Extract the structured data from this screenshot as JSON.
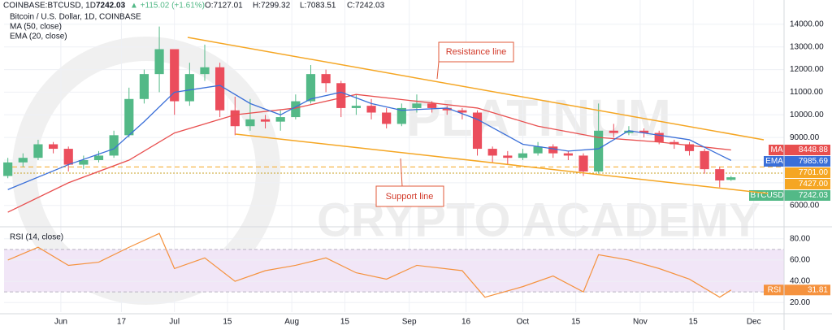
{
  "header": {
    "symbol": "COINBASE:BTCUSD, 1D",
    "price": "7242.03",
    "change": "▲ +115.02 (+1.61%)",
    "open": "O:7127.01",
    "high": "H:7299.32",
    "low": "L:7083.51",
    "close": "C:7242.03"
  },
  "watermark": [
    "PLATINUM",
    "CRYPTO ACADEMY"
  ],
  "annotations": {
    "resistance": "Resistance line",
    "support": "Support line"
  },
  "chart_data": [
    {
      "type": "candlestick",
      "title": "Bitcoin / U.S. Dollar, 1D, COINBASE",
      "xlim": [
        -15,
        191
      ],
      "xticks": [
        {
          "value": 0,
          "label": "Jun"
        },
        {
          "value": 16,
          "label": "17"
        },
        {
          "value": 30,
          "label": "Jul"
        },
        {
          "value": 44,
          "label": "15"
        },
        {
          "value": 61,
          "label": "Aug"
        },
        {
          "value": 75,
          "label": "15"
        },
        {
          "value": 92,
          "label": "Sep"
        },
        {
          "value": 107,
          "label": "16"
        },
        {
          "value": 122,
          "label": "Oct"
        },
        {
          "value": 136,
          "label": "15"
        },
        {
          "value": 153,
          "label": "Nov"
        },
        {
          "value": 167,
          "label": "15"
        },
        {
          "value": 183,
          "label": "Dec"
        }
      ],
      "ylim": [
        5200,
        15000
      ],
      "yticks": [
        {
          "value": 6000,
          "label": "6000.00"
        },
        {
          "value": 7000,
          "label": "7000.00"
        },
        {
          "value": 8000,
          "label": "8000.00"
        },
        {
          "value": 9000,
          "label": "9000.00"
        },
        {
          "value": 10000,
          "label": "10000.00"
        },
        {
          "value": 11000,
          "label": "11000.00"
        },
        {
          "value": 12000,
          "label": "12000.00"
        },
        {
          "value": 13000,
          "label": "13000.00"
        },
        {
          "value": 14000,
          "label": "14000.00"
        }
      ],
      "up_color": "#53b987",
      "down_color": "#eb4d5c",
      "x": [
        -14,
        -10,
        -6,
        -2,
        2,
        6,
        10,
        14,
        18,
        22,
        26,
        30,
        34,
        38,
        42,
        46,
        50,
        54,
        58,
        62,
        66,
        70,
        74,
        78,
        82,
        86,
        90,
        94,
        98,
        102,
        106,
        110,
        114,
        118,
        122,
        126,
        130,
        134,
        138,
        142,
        146,
        150,
        154,
        158,
        162,
        166,
        170,
        174,
        177
      ],
      "open": [
        7300,
        7900,
        8100,
        8700,
        8500,
        7800,
        8000,
        8200,
        9100,
        10700,
        11800,
        12900,
        10600,
        11800,
        12100,
        10200,
        9500,
        9800,
        9700,
        9900,
        10600,
        11800,
        11400,
        10300,
        10400,
        10100,
        9600,
        10300,
        10500,
        10300,
        10200,
        10100,
        8500,
        8200,
        8100,
        8300,
        8600,
        8300,
        8200,
        7500,
        9300,
        9200,
        9300,
        9200,
        8800,
        8700,
        8400,
        7600,
        7127.01
      ],
      "high": [
        8100,
        8300,
        8900,
        8800,
        8600,
        8200,
        8400,
        9300,
        11200,
        12000,
        13900,
        12900,
        12300,
        13100,
        12300,
        10800,
        10700,
        10000,
        10200,
        10900,
        12200,
        12000,
        11500,
        10900,
        10700,
        10300,
        10500,
        10900,
        10600,
        10400,
        10300,
        10200,
        8600,
        8400,
        8500,
        8800,
        8700,
        8400,
        8300,
        10500,
        9600,
        9500,
        9400,
        9300,
        8900,
        8800,
        8500,
        7700,
        7299.32
      ],
      "low": [
        7200,
        7700,
        8000,
        8300,
        7500,
        7600,
        7900,
        8100,
        9000,
        10500,
        11000,
        10000,
        10400,
        11500,
        9900,
        9100,
        9300,
        9400,
        9300,
        9800,
        10500,
        11000,
        9900,
        10000,
        9800,
        9400,
        9500,
        10100,
        10100,
        10000,
        9800,
        8200,
        7900,
        7800,
        8000,
        8200,
        8100,
        8000,
        7300,
        7400,
        9000,
        9100,
        9000,
        8700,
        8500,
        8200,
        7400,
        6800,
        7083.51
      ],
      "close": [
        7900,
        8100,
        8700,
        8500,
        7800,
        8000,
        8200,
        9100,
        10700,
        11800,
        12900,
        10600,
        11800,
        12100,
        10200,
        9500,
        9800,
        9700,
        9900,
        10600,
        11800,
        11400,
        10300,
        10400,
        10100,
        9600,
        10300,
        10500,
        10300,
        10200,
        10100,
        8500,
        8200,
        8100,
        8300,
        8600,
        8300,
        8200,
        7500,
        9300,
        9200,
        9300,
        9200,
        8800,
        8700,
        8400,
        7600,
        7100,
        7242.03
      ],
      "series": [
        {
          "name": "MA (50, close)",
          "color": "#e84f4f",
          "x": [
            -14,
            2,
            18,
            30,
            46,
            62,
            78,
            94,
            110,
            126,
            142,
            158,
            177
          ],
          "values": [
            5700,
            7000,
            8000,
            9200,
            10000,
            10300,
            10900,
            10600,
            10300,
            9500,
            9000,
            8800,
            8449
          ]
        },
        {
          "name": "EMA (20, close)",
          "color": "#3a6fd8",
          "x": [
            -14,
            2,
            14,
            22,
            30,
            42,
            50,
            58,
            66,
            74,
            82,
            90,
            102,
            110,
            122,
            134,
            142,
            150,
            158,
            166,
            177
          ],
          "values": [
            6700,
            7800,
            8500,
            9700,
            11000,
            11300,
            10500,
            10000,
            10700,
            11000,
            10500,
            10200,
            10300,
            9800,
            8700,
            8400,
            8500,
            9300,
            9100,
            8900,
            7986
          ]
        }
      ],
      "price_lines": [
        {
          "value": 7701,
          "color": "#f5a623",
          "dash": "6 4"
        },
        {
          "value": 7427,
          "color": "#c9a227",
          "dash": "2 2"
        }
      ],
      "tags": [
        {
          "name": "MA",
          "value": 8448.88,
          "color": "#e84f4f"
        },
        {
          "name": "EMA",
          "value": 7985.69,
          "color": "#3a6fd8"
        },
        {
          "value": 7701,
          "label": "7701.00",
          "color": "#f5a623"
        },
        {
          "value": 7427,
          "label": "7427.00",
          "color": "#f5a623"
        },
        {
          "name": "BTCUSD",
          "value": 7242.03,
          "color": "#53b987"
        }
      ]
    },
    {
      "type": "line",
      "title": "RSI (14, close)",
      "color": "#f5923e",
      "ylim": [
        11,
        89
      ],
      "yticks": [
        {
          "value": 20,
          "label": "20.00"
        },
        {
          "value": 40,
          "label": "40.00"
        },
        {
          "value": 60,
          "label": "60.00"
        },
        {
          "value": 80,
          "label": "80.00"
        }
      ],
      "band": [
        30,
        70
      ],
      "x": [
        -14,
        -6,
        2,
        10,
        18,
        26,
        30,
        38,
        46,
        54,
        62,
        70,
        78,
        86,
        94,
        106,
        112,
        122,
        130,
        138,
        142,
        150,
        158,
        166,
        174,
        177
      ],
      "values": [
        60,
        72,
        55,
        58,
        72,
        85,
        52,
        62,
        40,
        50,
        55,
        62,
        48,
        42,
        55,
        50,
        25,
        35,
        45,
        30,
        65,
        60,
        52,
        42,
        25,
        31.81
      ],
      "tag": {
        "name": "RSI",
        "value": 31.81,
        "color": "#f5923e"
      }
    }
  ]
}
